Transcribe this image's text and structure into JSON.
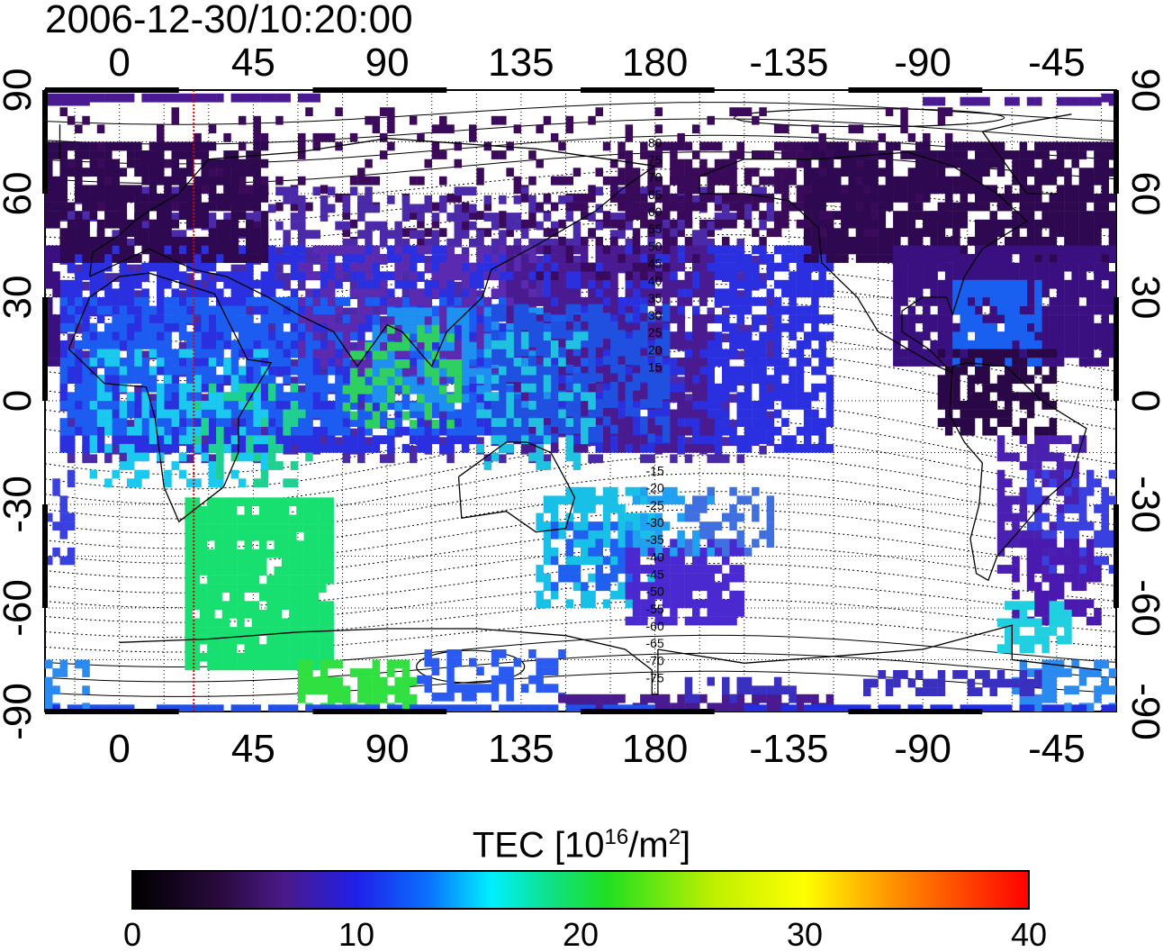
{
  "timestamp": "2006-12-30/10:20:00",
  "map": {
    "longitude_ticks_top": [
      "0",
      "45",
      "90",
      "135",
      "180",
      "-135",
      "-90",
      "-45"
    ],
    "longitude_ticks_bottom": [
      "0",
      "45",
      "90",
      "135",
      "180",
      "-135",
      "-90",
      "-45"
    ],
    "latitude_ticks_left": [
      "90",
      "60",
      "30",
      "0",
      "-30",
      "-60",
      "-90"
    ],
    "latitude_ticks_right": [
      "90",
      "60",
      "30",
      "0",
      "-30",
      "-60",
      "-90"
    ],
    "magnetic_latitude_labels_north": [
      "80",
      "75",
      "70",
      "65",
      "60",
      "55",
      "50",
      "45",
      "40",
      "35",
      "30",
      "25",
      "20",
      "15"
    ],
    "magnetic_latitude_labels_south": [
      "-15",
      "-20",
      "-25",
      "-30",
      "-35",
      "-40",
      "-45",
      "-50",
      "-55",
      "-60",
      "-65",
      "-70",
      "-75"
    ],
    "marker_longitude": 25,
    "colors": {
      "marker_line": "#e00000",
      "coastline": "#000000",
      "grid": "#000000"
    }
  },
  "colorbar": {
    "title_main": "TEC  [10",
    "title_exp1": "16",
    "title_mid": "/m",
    "title_exp2": "2",
    "title_end": "]",
    "ticks": [
      "0",
      "10",
      "20",
      "30",
      "40"
    ],
    "range": [
      0,
      40
    ],
    "colormap": [
      "#000000",
      "#3a0a5a",
      "#4a1a9a",
      "#2a20e0",
      "#0a60ff",
      "#00e0ff",
      "#10e060",
      "#40e000",
      "#f0f000",
      "#ffa000",
      "#ff3000",
      "#ff0000"
    ]
  }
}
